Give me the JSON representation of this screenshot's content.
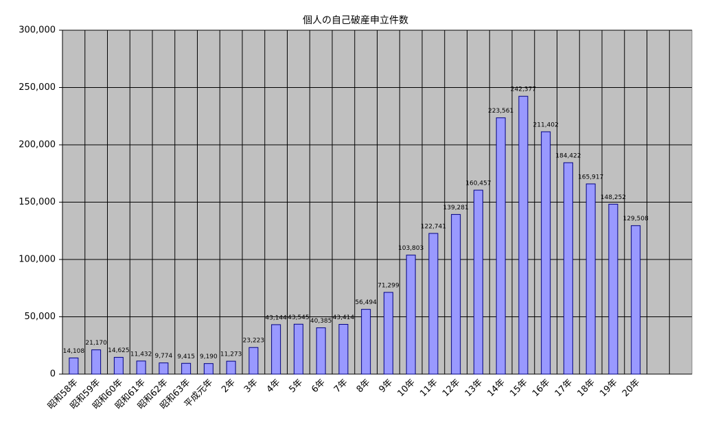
{
  "chart_data": {
    "type": "bar",
    "title": "個人の自己破産申立件数",
    "categories": [
      "昭和58年",
      "昭和59年",
      "昭和60年",
      "昭和61年",
      "昭和62年",
      "昭和63年",
      "平成元年",
      "2年",
      "3年",
      "4年",
      "5年",
      "6年",
      "7年",
      "8年",
      "9年",
      "10年",
      "11年",
      "12年",
      "13年",
      "14年",
      "15年",
      "16年",
      "17年",
      "18年",
      "19年",
      "20年",
      null,
      null
    ],
    "values": [
      14108,
      21170,
      14625,
      11432,
      9774,
      9415,
      9190,
      11273,
      23223,
      43144,
      43545,
      40385,
      43414,
      56494,
      71299,
      103803,
      122741,
      139281,
      160457,
      223561,
      242377,
      211402,
      184422,
      165917,
      148252,
      129508,
      null,
      null
    ],
    "value_labels": [
      "14,108",
      "21,170",
      "14,625",
      "11,432",
      "9,774",
      "9,415",
      "9,190",
      "11,273",
      "23,223",
      "43,144",
      "43,545",
      "40,385",
      "43,414",
      "56,494",
      "71,299",
      "103,803",
      "122,741",
      "139,281",
      "160,457",
      "223,561",
      "242,377",
      "211,402",
      "184,422",
      "165,917",
      "148,252",
      "129,508",
      null,
      null
    ],
    "color": "#9999ff",
    "ylim": [
      0,
      300000
    ],
    "yticks": [
      0,
      {
        "value": 50000,
        "label": "50,000"
      },
      {
        "value": 100000,
        "label": "100,000"
      },
      {
        "value": 150000,
        "label": "150,000"
      },
      {
        "value": 200000,
        "label": "200,000"
      },
      {
        "value": 250000,
        "label": "250,000"
      },
      {
        "value": 300000,
        "label": "300,000"
      }
    ],
    "grid": true
  }
}
